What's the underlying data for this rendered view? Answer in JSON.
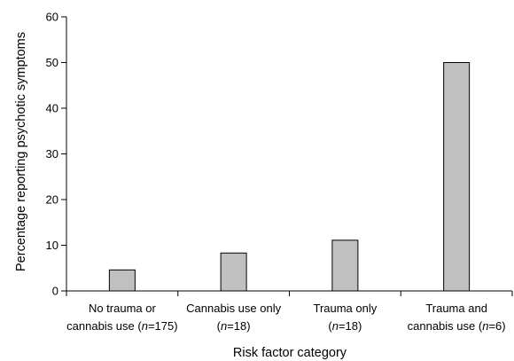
{
  "chart_data": {
    "type": "bar",
    "title": "",
    "xlabel": "Risk factor category",
    "ylabel": "Percentage reporting psychotic symptoms",
    "ylim": [
      0,
      60
    ],
    "yticks": [
      "0",
      "10",
      "20",
      "30",
      "40",
      "50",
      "60"
    ],
    "grid": false,
    "bar_color": "#c0c0c0",
    "categories": [
      {
        "line1": "No trauma or",
        "line2_prefix": "cannabis use (",
        "n_label": "n",
        "line2_suffix": "=175)"
      },
      {
        "line1": "Cannabis use only",
        "line2_prefix": "(",
        "n_label": "n",
        "line2_suffix": "=18)"
      },
      {
        "line1": "Trauma only",
        "line2_prefix": "(",
        "n_label": "n",
        "line2_suffix": "=18)"
      },
      {
        "line1": "Trauma and",
        "line2_prefix": "cannabis use (",
        "n_label": "n",
        "line2_suffix": "=6)"
      }
    ],
    "values": [
      4.6,
      8.3,
      11.1,
      50
    ]
  }
}
